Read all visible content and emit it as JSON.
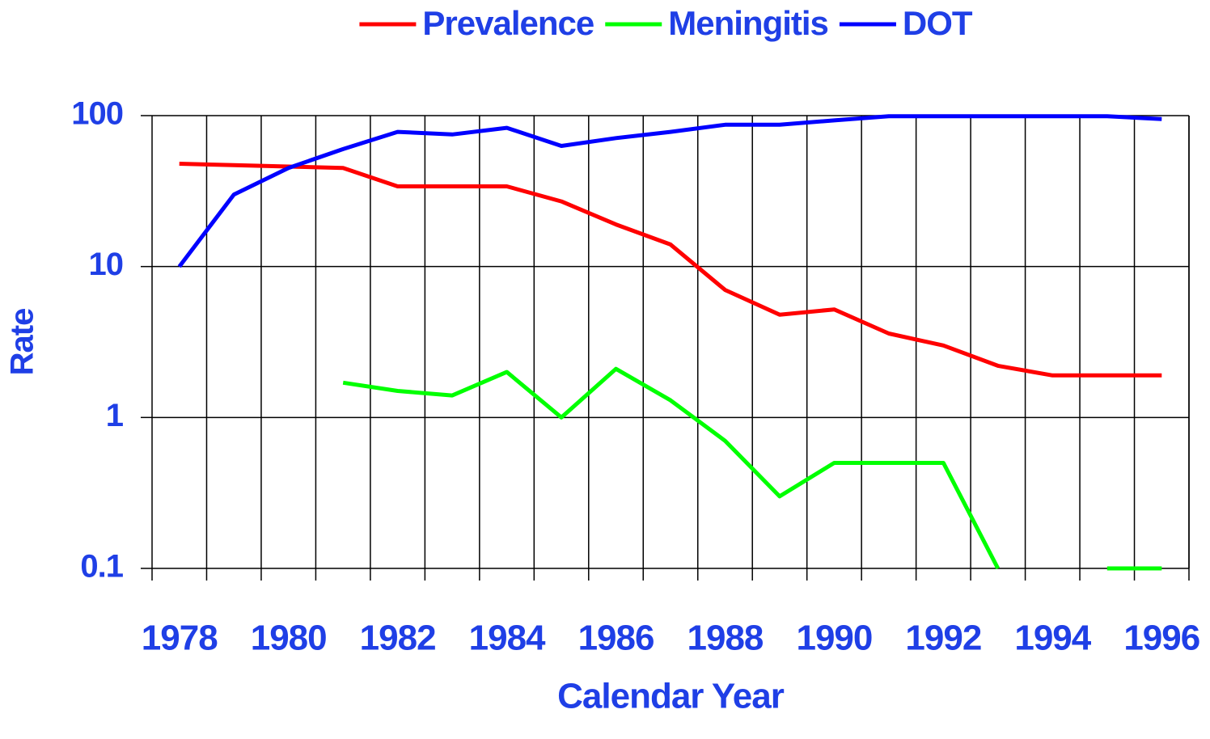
{
  "chart_data": {
    "type": "line",
    "categories": [
      "1978",
      null,
      "1980",
      null,
      "1982",
      null,
      "1984",
      null,
      "1986",
      null,
      "1988",
      null,
      "1990",
      null,
      "1992",
      null,
      "1994",
      null,
      "1996"
    ],
    "series": [
      {
        "name": "Prevalence",
        "color": "#ff0000",
        "values": [
          48,
          47,
          46,
          45,
          34,
          34,
          34,
          27,
          19,
          14,
          7,
          4.8,
          5.2,
          3.6,
          3,
          2.2,
          1.9,
          1.9,
          1.9
        ]
      },
      {
        "name": "Meningitis",
        "color": "#00ff00",
        "values": [
          null,
          null,
          null,
          1.7,
          1.5,
          1.4,
          2,
          1,
          2.1,
          1.3,
          0.7,
          0.3,
          0.5,
          0.5,
          0.5,
          0.1,
          null,
          0.1,
          0.1
        ]
      },
      {
        "name": "DOT",
        "color": "#0000ff",
        "values": [
          10,
          30,
          45,
          60,
          78,
          75,
          83,
          63,
          71,
          78,
          87,
          87,
          93,
          99,
          99,
          99,
          99,
          99,
          95
        ]
      }
    ],
    "xlabel": "Calendar Year",
    "ylabel": "Rate",
    "ylim": [
      0.1,
      100
    ],
    "yticks": [
      100,
      10,
      1,
      0.1
    ],
    "log_y": true,
    "grid": true,
    "legend": "top"
  }
}
